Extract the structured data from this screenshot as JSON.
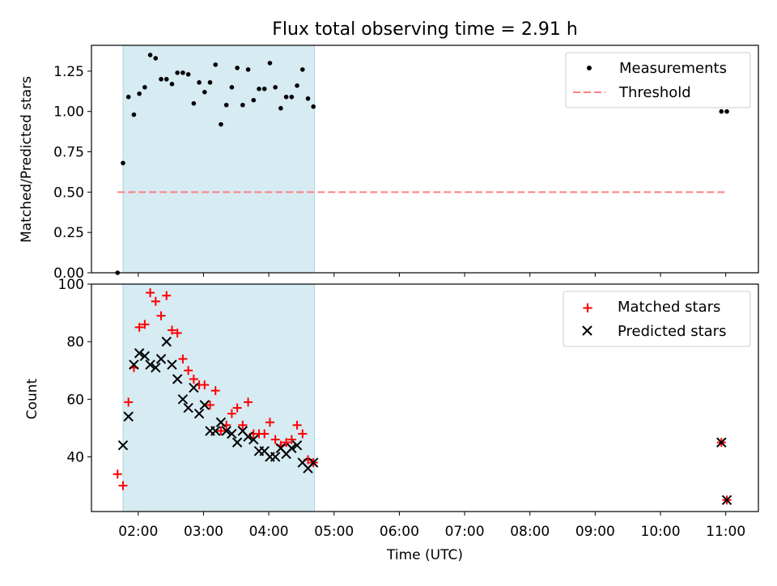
{
  "title": "Flux total observing time = 2.91 h",
  "colors": {
    "band": "#add8e6",
    "measurement": "#000000",
    "threshold": "#ff7f7f",
    "matched": "#ff0000",
    "predicted": "#000000"
  },
  "chart_data": [
    {
      "type": "scatter",
      "ylabel": "Matched/Predicted stars",
      "xlabel": "",
      "xlim": [
        "01:17",
        "11:30"
      ],
      "ylim": [
        0,
        1.41
      ],
      "yticks": [
        "0.00",
        "0.25",
        "0.50",
        "0.75",
        "1.00",
        "1.25"
      ],
      "shaded_interval": [
        "01:46",
        "04:42"
      ],
      "grid": false,
      "legend_placement": "top-right",
      "series": [
        {
          "name": "Measurements",
          "marker": "dot",
          "x": [
            "01:41",
            "01:46",
            "01:51",
            "01:56",
            "02:01",
            "02:06",
            "02:11",
            "02:16",
            "02:21",
            "02:26",
            "02:31",
            "02:36",
            "02:41",
            "02:46",
            "02:51",
            "02:56",
            "03:01",
            "03:06",
            "03:11",
            "03:16",
            "03:21",
            "03:26",
            "03:31",
            "03:36",
            "03:41",
            "03:46",
            "03:51",
            "03:56",
            "04:01",
            "04:06",
            "04:11",
            "04:16",
            "04:21",
            "04:26",
            "04:31",
            "04:36",
            "04:41",
            "10:56",
            "11:01"
          ],
          "y": [
            0.0,
            0.68,
            1.09,
            0.98,
            1.11,
            1.15,
            1.35,
            1.33,
            1.2,
            1.2,
            1.17,
            1.24,
            1.24,
            1.23,
            1.05,
            1.18,
            1.12,
            1.18,
            1.29,
            0.92,
            1.04,
            1.15,
            1.27,
            1.04,
            1.26,
            1.07,
            1.14,
            1.14,
            1.3,
            1.15,
            1.02,
            1.09,
            1.09,
            1.16,
            1.26,
            1.08,
            1.03,
            1.0,
            1.0
          ]
        },
        {
          "name": "Threshold",
          "marker": "dashed-line",
          "x": [
            "01:41",
            "11:01"
          ],
          "y": [
            0.5,
            0.5
          ]
        }
      ]
    },
    {
      "type": "scatter",
      "ylabel": "Count",
      "xlabel": "Time (UTC)",
      "xlim": [
        "01:17",
        "11:30"
      ],
      "ylim": [
        21,
        100
      ],
      "yticks": [
        "40",
        "60",
        "80",
        "100"
      ],
      "xticks": [
        "02:00",
        "03:00",
        "04:00",
        "05:00",
        "06:00",
        "07:00",
        "08:00",
        "09:00",
        "10:00",
        "11:00"
      ],
      "shaded_interval": [
        "01:46",
        "04:42"
      ],
      "grid": false,
      "legend_placement": "top-right",
      "series": [
        {
          "name": "Matched stars",
          "marker": "plus",
          "x": [
            "01:41",
            "01:46",
            "01:51",
            "01:56",
            "02:01",
            "02:06",
            "02:11",
            "02:16",
            "02:21",
            "02:26",
            "02:31",
            "02:36",
            "02:41",
            "02:46",
            "02:51",
            "02:56",
            "03:01",
            "03:06",
            "03:11",
            "03:16",
            "03:21",
            "03:26",
            "03:31",
            "03:36",
            "03:41",
            "03:46",
            "03:51",
            "03:56",
            "04:01",
            "04:06",
            "04:11",
            "04:16",
            "04:21",
            "04:26",
            "04:31",
            "04:36",
            "04:41",
            "10:56",
            "11:01"
          ],
          "y": [
            34,
            30,
            59,
            71,
            85,
            86,
            97,
            94,
            89,
            96,
            84,
            83,
            74,
            70,
            67,
            65,
            65,
            58,
            63,
            49,
            51,
            55,
            57,
            51,
            59,
            48,
            48,
            48,
            52,
            46,
            44,
            45,
            46,
            51,
            48,
            39,
            38,
            45,
            25
          ]
        },
        {
          "name": "Predicted stars",
          "marker": "x",
          "x": [
            "01:46",
            "01:51",
            "01:56",
            "02:01",
            "02:06",
            "02:11",
            "02:16",
            "02:21",
            "02:26",
            "02:31",
            "02:36",
            "02:41",
            "02:46",
            "02:51",
            "02:56",
            "03:01",
            "03:06",
            "03:11",
            "03:16",
            "03:21",
            "03:26",
            "03:31",
            "03:36",
            "03:41",
            "03:46",
            "03:51",
            "03:56",
            "04:01",
            "04:06",
            "04:11",
            "04:16",
            "04:21",
            "04:26",
            "04:31",
            "04:36",
            "04:41",
            "10:56",
            "11:01"
          ],
          "y": [
            44,
            54,
            72,
            76,
            75,
            72,
            71,
            74,
            80,
            72,
            67,
            60,
            57,
            64,
            55,
            58,
            49,
            49,
            52,
            49,
            48,
            45,
            49,
            47,
            46,
            42,
            42,
            40,
            40,
            43,
            41,
            43,
            44,
            38,
            36,
            38,
            45,
            25
          ]
        }
      ]
    }
  ]
}
